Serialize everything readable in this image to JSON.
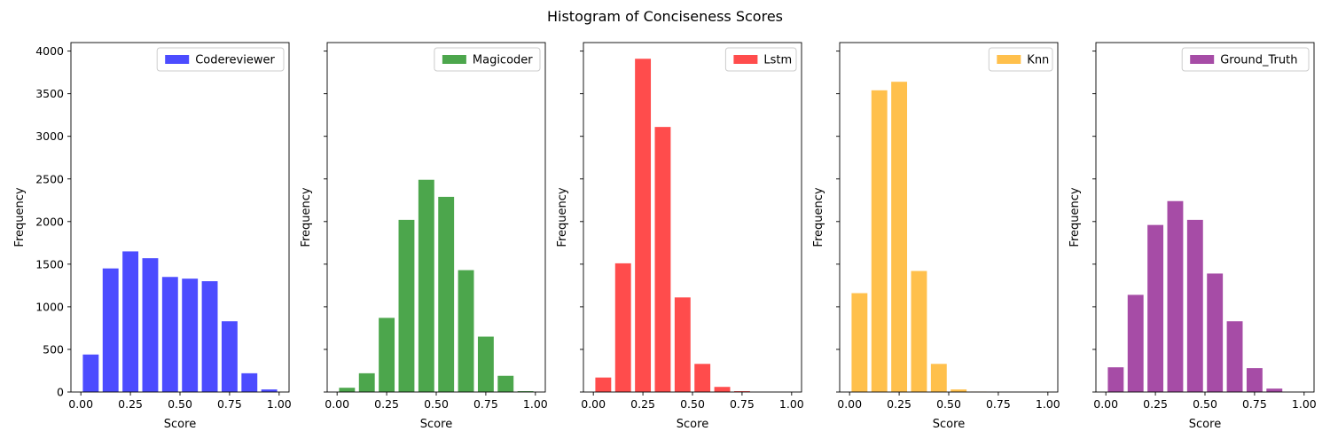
{
  "figure": {
    "title": "Histogram of Conciseness Scores"
  },
  "chart_data": [
    {
      "type": "bar",
      "series_name": "Codereviewer",
      "color": "#0000ff",
      "x": [
        0.0,
        0.1,
        0.2,
        0.3,
        0.4,
        0.5,
        0.6,
        0.7,
        0.8,
        0.9
      ],
      "values": [
        440,
        1450,
        1650,
        1570,
        1350,
        1330,
        1300,
        830,
        220,
        30
      ],
      "xlabel": "Score",
      "ylabel": "Frequency",
      "xlim": [
        -0.05,
        1.05
      ],
      "ylim": [
        0,
        4100
      ],
      "xticks": [
        "0.00",
        "0.25",
        "0.50",
        "0.75",
        "1.00"
      ],
      "yticks": [
        "0",
        "500",
        "1000",
        "1500",
        "2000",
        "2500",
        "3000",
        "3500",
        "4000"
      ],
      "legend": "top-right"
    },
    {
      "type": "bar",
      "series_name": "Magicoder",
      "color": "#008000",
      "x": [
        0.0,
        0.1,
        0.2,
        0.3,
        0.4,
        0.5,
        0.6,
        0.7,
        0.8,
        0.9
      ],
      "values": [
        50,
        220,
        870,
        2020,
        2490,
        2290,
        1430,
        650,
        190,
        10
      ],
      "xlabel": "Score",
      "ylabel": "Frequency",
      "xlim": [
        -0.05,
        1.05
      ],
      "ylim": [
        0,
        4100
      ],
      "xticks": [
        "0.00",
        "0.25",
        "0.50",
        "0.75",
        "1.00"
      ],
      "legend": "top-right"
    },
    {
      "type": "bar",
      "series_name": "Lstm",
      "color": "#ff0000",
      "x": [
        0.0,
        0.1,
        0.2,
        0.3,
        0.4,
        0.5,
        0.6,
        0.7
      ],
      "values": [
        170,
        1510,
        3910,
        3110,
        1110,
        330,
        60,
        10
      ],
      "xlabel": "Score",
      "ylabel": "Frequency",
      "xlim": [
        -0.05,
        1.05
      ],
      "ylim": [
        0,
        4100
      ],
      "xticks": [
        "0.00",
        "0.25",
        "0.50",
        "0.75",
        "1.00"
      ],
      "legend": "top-right"
    },
    {
      "type": "bar",
      "series_name": "Knn",
      "color": "#ffa500",
      "x": [
        0.0,
        0.1,
        0.2,
        0.3,
        0.4,
        0.5,
        0.6
      ],
      "values": [
        1160,
        3540,
        3640,
        1420,
        330,
        30,
        5
      ],
      "xlabel": "Score",
      "ylabel": "Frequency",
      "xlim": [
        -0.05,
        1.05
      ],
      "ylim": [
        0,
        4100
      ],
      "xticks": [
        "0.00",
        "0.25",
        "0.50",
        "0.75",
        "1.00"
      ],
      "legend": "top-right"
    },
    {
      "type": "bar",
      "series_name": "Ground_Truth",
      "color": "#800080",
      "x": [
        0.0,
        0.1,
        0.2,
        0.3,
        0.4,
        0.5,
        0.6,
        0.7,
        0.8
      ],
      "values": [
        290,
        1140,
        1960,
        2240,
        2020,
        1390,
        830,
        280,
        40
      ],
      "xlabel": "Score",
      "ylabel": "Frequency",
      "xlim": [
        -0.05,
        1.05
      ],
      "ylim": [
        0,
        4100
      ],
      "xticks": [
        "0.00",
        "0.25",
        "0.50",
        "0.75",
        "1.00"
      ],
      "legend": "top-right"
    }
  ]
}
